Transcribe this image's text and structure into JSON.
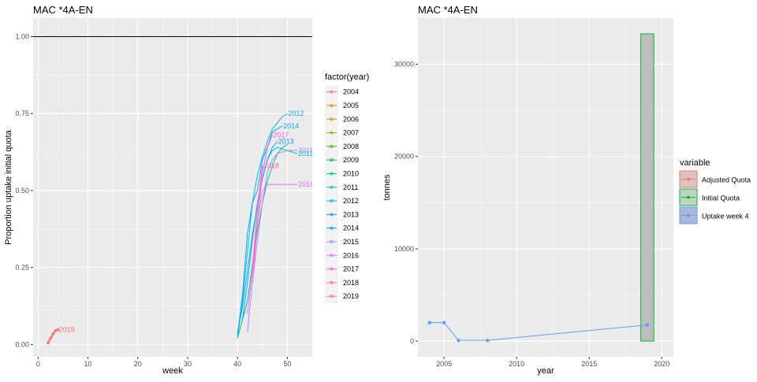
{
  "chart_data": [
    {
      "type": "line",
      "title": "MAC *4A-EN",
      "xlabel": "week",
      "ylabel": "Proportion uptake initial quota",
      "xlim": [
        -1,
        55
      ],
      "ylim": [
        -0.04,
        1.06
      ],
      "xticks": [
        0,
        10,
        20,
        30,
        40,
        50
      ],
      "xtick_labels": [
        "0",
        "10",
        "20",
        "30",
        "40",
        "50"
      ],
      "yticks": [
        0,
        0.25,
        0.5,
        0.75,
        1.0
      ],
      "ytick_labels": [
        "0.00",
        "0.25",
        "0.50",
        "0.75",
        "1.00"
      ],
      "hline": 1.0,
      "legend_title": "factor(year)",
      "legend_position": "right",
      "grid": true,
      "series": [
        {
          "name": "2004",
          "color": "#F8766D",
          "points": []
        },
        {
          "name": "2005",
          "color": "#E38900",
          "points": []
        },
        {
          "name": "2006",
          "color": "#C49A00",
          "points": []
        },
        {
          "name": "2007",
          "color": "#99A800",
          "points": []
        },
        {
          "name": "2008",
          "color": "#53B400",
          "points": []
        },
        {
          "name": "2009",
          "color": "#00BC56",
          "points": []
        },
        {
          "name": "2010",
          "color": "#00C094",
          "points": [
            [
              40,
              0.02
            ],
            [
              42,
              0.14
            ],
            [
              43,
              0.26
            ],
            [
              44,
              0.37
            ],
            [
              45,
              0.46
            ],
            [
              46,
              0.53
            ],
            [
              47,
              0.58
            ],
            [
              48,
              0.62
            ],
            [
              49,
              0.64
            ],
            [
              50,
              0.65
            ]
          ],
          "label": ""
        },
        {
          "name": "2011",
          "color": "#00BFC4",
          "points": [
            [
              40,
              0.04
            ],
            [
              41,
              0.12
            ],
            [
              42,
              0.24
            ],
            [
              43,
              0.36
            ],
            [
              44,
              0.45
            ],
            [
              45,
              0.54
            ],
            [
              46,
              0.6
            ],
            [
              47,
              0.63
            ],
            [
              48,
              0.64
            ],
            [
              50,
              0.63
            ],
            [
              52,
              0.62
            ]
          ],
          "label": "2011"
        },
        {
          "name": "2012",
          "color": "#00B6EB",
          "points": [
            [
              40,
              0.02
            ],
            [
              41,
              0.14
            ],
            [
              42,
              0.3
            ],
            [
              43,
              0.46
            ],
            [
              44,
              0.55
            ],
            [
              45,
              0.61
            ],
            [
              46,
              0.66
            ],
            [
              47,
              0.7
            ],
            [
              48,
              0.72
            ],
            [
              49,
              0.74
            ],
            [
              50,
              0.75
            ]
          ],
          "label": "2012"
        },
        {
          "name": "2013",
          "color": "#06A4FF",
          "points": [
            [
              41,
              0.08
            ],
            [
              42,
              0.2
            ],
            [
              43,
              0.34
            ],
            [
              44,
              0.46
            ],
            [
              45,
              0.54
            ],
            [
              46,
              0.6
            ],
            [
              47,
              0.64
            ],
            [
              48,
              0.66
            ]
          ],
          "label": "2013"
        },
        {
          "name": "2014",
          "color": "#00A5FF",
          "points": [
            [
              40,
              0.03
            ],
            [
              41,
              0.16
            ],
            [
              42,
              0.36
            ],
            [
              43,
              0.46
            ],
            [
              44,
              0.5
            ],
            [
              45,
              0.6
            ],
            [
              46,
              0.64
            ],
            [
              47,
              0.69
            ],
            [
              48,
              0.7
            ],
            [
              49,
              0.71
            ]
          ],
          "label": "2014"
        },
        {
          "name": "2015",
          "color": "#A58AFF",
          "points": [
            [
              42,
              0.04
            ],
            [
              43,
              0.2
            ],
            [
              44,
              0.34
            ],
            [
              45,
              0.46
            ],
            [
              46,
              0.56
            ],
            [
              47,
              0.6
            ],
            [
              48,
              0.62
            ],
            [
              50,
              0.63
            ],
            [
              52,
              0.63
            ]
          ],
          "label": "2015"
        },
        {
          "name": "2016",
          "color": "#DF70F8",
          "points": [
            [
              42,
              0.1
            ],
            [
              43,
              0.24
            ],
            [
              44,
              0.4
            ],
            [
              45,
              0.5
            ],
            [
              46,
              0.52
            ],
            [
              50,
              0.52
            ],
            [
              52,
              0.52
            ]
          ],
          "label": "2016"
        },
        {
          "name": "2017",
          "color": "#FB61D7",
          "points": [
            [
              43,
              0.2
            ],
            [
              44,
              0.4
            ],
            [
              45,
              0.56
            ],
            [
              46,
              0.64
            ],
            [
              47,
              0.68
            ]
          ],
          "label": "2017"
        },
        {
          "name": "2018",
          "color": "#FF66A8",
          "points": [
            [
              43,
              0.25
            ],
            [
              44,
              0.44
            ],
            [
              45,
              0.58
            ]
          ],
          "label": "2018"
        },
        {
          "name": "2019",
          "color": "#F8766D",
          "points": [
            [
              2,
              0.005
            ],
            [
              2.5,
              0.02
            ],
            [
              3,
              0.035
            ],
            [
              3.5,
              0.045
            ],
            [
              4,
              0.048
            ]
          ],
          "label": "2019"
        }
      ]
    },
    {
      "type": "line",
      "title": "MAC *4A-EN",
      "xlabel": "year",
      "ylabel": "tonnes",
      "xlim": [
        2003.2,
        2020.8
      ],
      "ylim": [
        -1700,
        35000
      ],
      "xticks": [
        2005,
        2010,
        2015,
        2020
      ],
      "xtick_labels": [
        "2005",
        "2010",
        "2015",
        "2020"
      ],
      "yticks": [
        0,
        10000,
        20000,
        30000
      ],
      "ytick_labels": [
        "0",
        "10000",
        "20000",
        "30000"
      ],
      "legend_title": "variable",
      "legend_position": "right",
      "grid": true,
      "bars": [
        {
          "x": 2019,
          "width": 0.9,
          "value": 33300,
          "fill": "#BDBDBD",
          "stroke": "#00BA38"
        }
      ],
      "series": [
        {
          "name": "Adjusted Quota",
          "color": "#F8766D",
          "points": []
        },
        {
          "name": "Initial Quota",
          "color": "#00BA38",
          "points": []
        },
        {
          "name": "Uptake week 4",
          "color": "#619CFF",
          "points": [
            [
              2004,
              2000
            ],
            [
              2005,
              2000
            ],
            [
              2006,
              80
            ],
            [
              2008,
              80
            ],
            [
              2019,
              1750
            ]
          ]
        }
      ]
    }
  ]
}
